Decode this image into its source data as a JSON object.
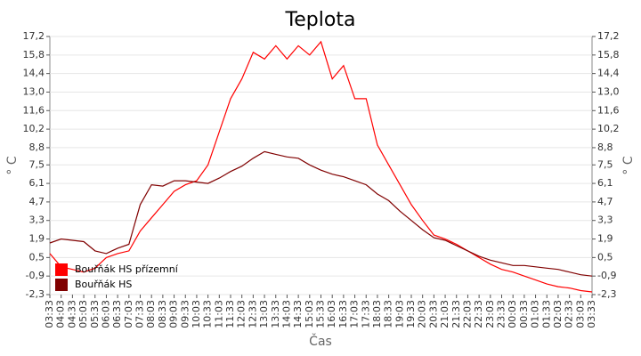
{
  "chart_data": {
    "type": "line",
    "title": "Teplota",
    "xlabel": "Čas",
    "ylabel": "° C",
    "y2label": "° C",
    "categories": [
      "03:33",
      "04:03",
      "04:33",
      "05:03",
      "05:33",
      "06:03",
      "06:33",
      "07:03",
      "07:33",
      "08:03",
      "08:33",
      "09:03",
      "09:33",
      "10:03",
      "10:33",
      "11:03",
      "11:33",
      "12:03",
      "12:33",
      "13:03",
      "13:33",
      "14:03",
      "14:33",
      "15:03",
      "15:33",
      "16:03",
      "16:33",
      "17:03",
      "17:33",
      "18:03",
      "18:33",
      "19:03",
      "19:33",
      "20:03",
      "20:33",
      "21:03",
      "21:33",
      "22:03",
      "22:33",
      "23:03",
      "23:33",
      "00:03",
      "00:33",
      "01:03",
      "01:33",
      "02:03",
      "02:33",
      "03:03",
      "03:33"
    ],
    "series": [
      {
        "name": "Bouřňák HS přízemní",
        "color": "#ff0000",
        "values": [
          0.8,
          -0.2,
          -0.4,
          -0.6,
          -0.3,
          0.5,
          0.8,
          1.0,
          2.5,
          3.5,
          4.5,
          5.5,
          6.0,
          6.3,
          7.5,
          10.0,
          12.5,
          14.0,
          16.0,
          15.5,
          16.5,
          15.5,
          16.5,
          15.8,
          16.8,
          14.0,
          15.0,
          12.5,
          12.5,
          9.0,
          7.5,
          6.0,
          4.5,
          3.3,
          2.2,
          1.9,
          1.5,
          1.0,
          0.5,
          0.0,
          -0.4,
          -0.6,
          -0.9,
          -1.2,
          -1.5,
          -1.7,
          -1.8,
          -2.0,
          -2.1
        ]
      },
      {
        "name": "Bouřňák HS",
        "color": "#800000",
        "values": [
          1.6,
          1.9,
          1.8,
          1.7,
          1.0,
          0.8,
          1.2,
          1.5,
          4.5,
          6.0,
          5.9,
          6.3,
          6.3,
          6.2,
          6.1,
          6.5,
          7.0,
          7.4,
          8.0,
          8.5,
          8.3,
          8.1,
          8.0,
          7.5,
          7.1,
          6.8,
          6.6,
          6.3,
          6.0,
          5.3,
          4.8,
          4.0,
          3.3,
          2.6,
          2.0,
          1.8,
          1.4,
          1.0,
          0.6,
          0.3,
          0.1,
          -0.1,
          -0.1,
          -0.2,
          -0.3,
          -0.4,
          -0.6,
          -0.8,
          -0.9
        ]
      }
    ],
    "ylim": [
      -2.3,
      17.2
    ],
    "yticks": [
      {
        "value": -2.3,
        "label": "-2,3"
      },
      {
        "value": -0.9,
        "label": "-0,9"
      },
      {
        "value": 0.5,
        "label": "0,5"
      },
      {
        "value": 1.9,
        "label": "1,9"
      },
      {
        "value": 3.3,
        "label": "3,3"
      },
      {
        "value": 4.7,
        "label": "4,7"
      },
      {
        "value": 6.1,
        "label": "6,1"
      },
      {
        "value": 7.5,
        "label": "7,5"
      },
      {
        "value": 8.8,
        "label": "8,8"
      },
      {
        "value": 10.2,
        "label": "10,2"
      },
      {
        "value": 11.6,
        "label": "11,6"
      },
      {
        "value": 13.0,
        "label": "13,0"
      },
      {
        "value": 14.4,
        "label": "14,4"
      },
      {
        "value": 15.8,
        "label": "15,8"
      },
      {
        "value": 17.2,
        "label": "17,2"
      }
    ],
    "y2lim": [
      -2.3,
      17.2
    ],
    "y2ticks": [
      {
        "value": -2.3,
        "label": "-2,3"
      },
      {
        "value": -0.9,
        "label": "-0,9"
      },
      {
        "value": 0.5,
        "label": "0,5"
      },
      {
        "value": 1.9,
        "label": "1,9"
      },
      {
        "value": 3.3,
        "label": "3,3"
      },
      {
        "value": 4.7,
        "label": "4,7"
      },
      {
        "value": 6.1,
        "label": "6,1"
      },
      {
        "value": 7.5,
        "label": "7,5"
      },
      {
        "value": 8.8,
        "label": "8,8"
      },
      {
        "value": 10.2,
        "label": "10,2"
      },
      {
        "value": 11.6,
        "label": "11,6"
      },
      {
        "value": 13.0,
        "label": "13,0"
      },
      {
        "value": 14.4,
        "label": "14,4"
      },
      {
        "value": 15.8,
        "label": "15,8"
      },
      {
        "value": 17.2,
        "label": "17,2"
      }
    ],
    "grid": true,
    "legend": "lower left"
  }
}
